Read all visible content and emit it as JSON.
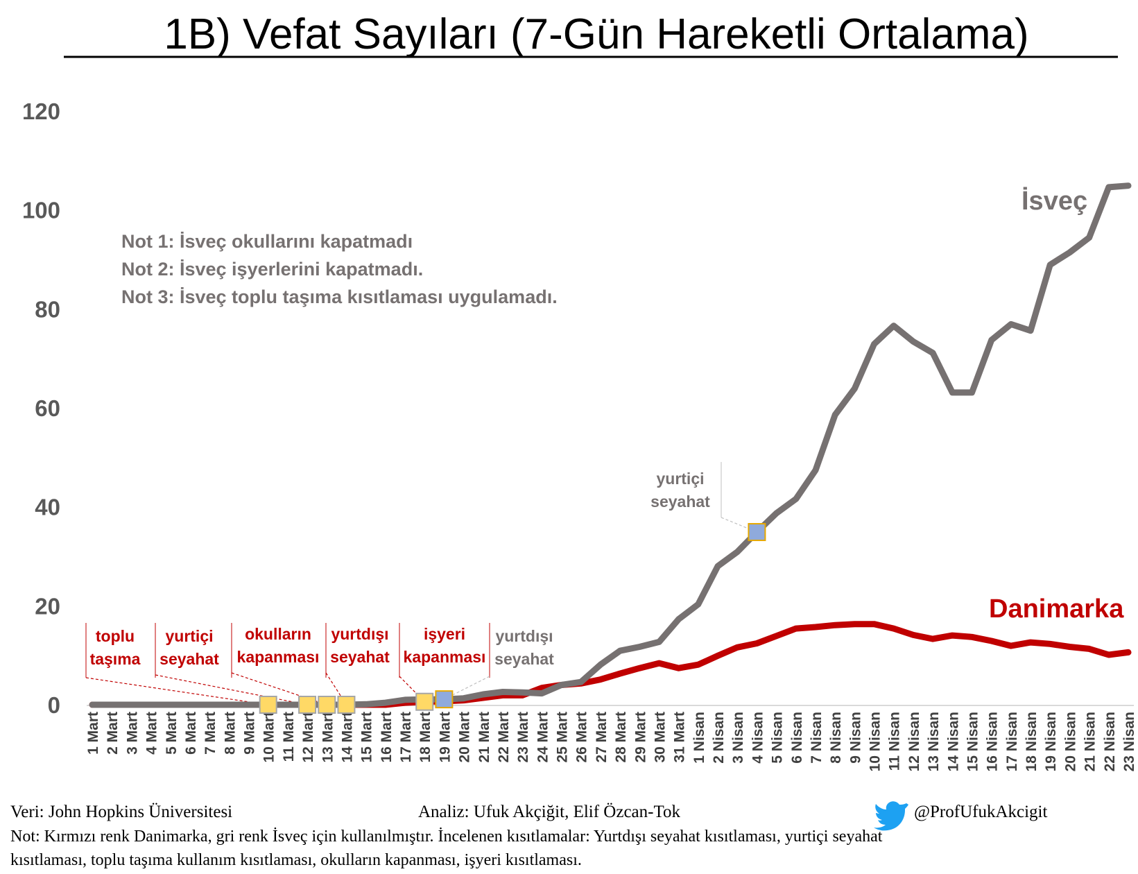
{
  "chart_data": {
    "type": "line",
    "title": "1B) Vefat Sayıları (7-Gün Hareketli Ortalama)",
    "xlabel": "",
    "ylabel": "",
    "ylim": [
      0,
      120
    ],
    "yticks": [
      "0",
      "20",
      "40",
      "60",
      "80",
      "100",
      "120"
    ],
    "grid": false,
    "x": [
      "1 Mart",
      "2 Mart",
      "3 Mart",
      "4 Mart",
      "5 Mart",
      "6 Mart",
      "7 Mart",
      "8 Mart",
      "9 Mart",
      "10 Mart",
      "11 Mart",
      "12 Mart",
      "13 Mart",
      "14 Mart",
      "15 Mart",
      "16 Mart",
      "17 Mart",
      "18 Mart",
      "19 Mart",
      "20 Mart",
      "21 Mart",
      "22 Mart",
      "23 Mart",
      "24 Mart",
      "25 Mart",
      "26 Mart",
      "27 Mart",
      "28 Mart",
      "29 Mart",
      "30 Mart",
      "31 Mart",
      "1 Nisan",
      "2 Nisan",
      "3 Nisan",
      "4 Nisan",
      "5 Nisan",
      "6 Nisan",
      "7 Nisan",
      "8 Nisan",
      "9 Nisan",
      "10 Nisan",
      "11 Nisan",
      "12 Nisan",
      "13 Nisan",
      "14 Nisan",
      "15 Nisan",
      "16 Nisan",
      "17 Nisan",
      "18 Nisan",
      "19 Nisan",
      "20 Nisan",
      "21 Nisan",
      "22 Nisan",
      "23 Nisan"
    ],
    "series": [
      {
        "name": "İsveç",
        "color": "#767171",
        "values": [
          0,
          0,
          0,
          0,
          0,
          0,
          0,
          0,
          0,
          0,
          0,
          0,
          0,
          0,
          0.1,
          0.4,
          1.0,
          1.1,
          1.1,
          1.3,
          2.1,
          2.6,
          2.5,
          2.3,
          4.0,
          4.6,
          8.1,
          10.9,
          11.7,
          12.7,
          17.3,
          20.3,
          28.0,
          30.9,
          34.9,
          38.7,
          41.6,
          47.4,
          58.6,
          63.9,
          72.9,
          76.6,
          73.4,
          71.1,
          63.1,
          63.1,
          73.7,
          76.9,
          75.6,
          88.9,
          91.4,
          94.4,
          104.6,
          104.9
        ]
      },
      {
        "name": "Danimarka",
        "color": "#c00000",
        "values": [
          0,
          0,
          0,
          0,
          0,
          0,
          0,
          0,
          0,
          0,
          0,
          0,
          0,
          0,
          0,
          0,
          0.4,
          0.6,
          0.7,
          0.9,
          1.4,
          1.9,
          1.9,
          3.4,
          4.0,
          4.3,
          5.1,
          6.3,
          7.4,
          8.4,
          7.4,
          8.1,
          9.9,
          11.6,
          12.4,
          13.9,
          15.4,
          15.7,
          16.1,
          16.3,
          16.3,
          15.4,
          14.1,
          13.3,
          14.0,
          13.7,
          12.9,
          11.9,
          12.6,
          12.3,
          11.7,
          11.3,
          10.1,
          10.6
        ]
      }
    ],
    "markers": [
      {
        "series": "Danimarka",
        "x": "10 Mart",
        "y": 0,
        "color": "#ffd966"
      },
      {
        "series": "Danimarka",
        "x": "12 Mart",
        "y": 0,
        "color": "#ffd966"
      },
      {
        "series": "Danimarka",
        "x": "13 Mart",
        "y": 0,
        "color": "#ffd966"
      },
      {
        "series": "Danimarka",
        "x": "14 Mart",
        "y": 0,
        "color": "#ffd966"
      },
      {
        "series": "Danimarka",
        "x": "18 Mart",
        "y": 0.6,
        "color": "#ffd966"
      },
      {
        "series": "İsveç",
        "x": "19 Mart",
        "y": 1.1,
        "color": "#8faadc"
      },
      {
        "series": "İsveç",
        "x": "4 Nisan",
        "y": 34.9,
        "color": "#8faadc"
      }
    ],
    "annotations": {
      "notes": [
        "Not 1: İsveç okullarını kapatmadı",
        "Not 2: İsveç işyerlerini kapatmadı.",
        "Not 3: İsveç toplu taşıma kısıtlaması uygulamadı."
      ],
      "series_labels": {
        "sweden": "İsveç",
        "denmark": "Danimarka"
      },
      "events": [
        {
          "lines": [
            "toplu",
            "taşıma"
          ],
          "color": "#c00000",
          "x": "10 Mart"
        },
        {
          "lines": [
            "yurtiçi",
            "seyahat"
          ],
          "color": "#c00000",
          "x": "12 Mart"
        },
        {
          "lines": [
            "okulların",
            "kapanması"
          ],
          "color": "#c00000",
          "x": "13 Mart"
        },
        {
          "lines": [
            "yurtdışı",
            "seyahat"
          ],
          "color": "#c00000",
          "x": "14 Mart"
        },
        {
          "lines": [
            "işyeri",
            "kapanması"
          ],
          "color": "#c00000",
          "x": "18 Mart"
        },
        {
          "lines": [
            "yurtdışı",
            "seyahat"
          ],
          "color": "#767171",
          "x": "19 Mart"
        },
        {
          "lines": [
            "yurtiçi",
            "seyahat"
          ],
          "color": "#767171",
          "x": "4 Nisan"
        }
      ]
    }
  },
  "footer": {
    "source": "Veri:  John Hopkins Üniversitesi",
    "analysis": "Analiz: Ufuk Akçiğit, Elif  Özcan-Tok",
    "twitter": "@ProfUfukAkcigit",
    "twitter_icon": "bird-icon",
    "note_line1": "Not: Kırmızı renk Danimarka, gri renk İsveç için kullanılmıştır. İncelenen kısıtlamalar: Yurtdışı seyahat kısıtlaması, yurtiçi seyahat",
    "note_line2": "kısıtlaması, toplu taşıma kullanım kısıtlaması, okulların kapanması, işyeri kısıtlaması."
  }
}
